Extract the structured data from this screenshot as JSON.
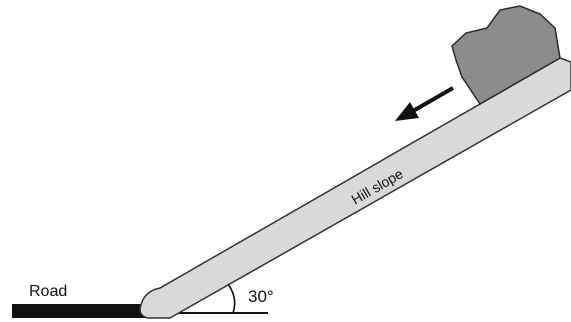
{
  "labels": {
    "road": "Road",
    "slope": "Hill slope",
    "angle": "30°"
  },
  "colors": {
    "road": "#111111",
    "slope_fill": "#d9d9d9",
    "slope_stroke": "#333333",
    "rock_fill": "#8c8c8c",
    "rock_stroke": "#2b2b2b",
    "line": "#111111",
    "arrow": "#111111"
  },
  "icons": {
    "rock": "rock-icon",
    "arrow": "arrow-left-down-icon"
  }
}
